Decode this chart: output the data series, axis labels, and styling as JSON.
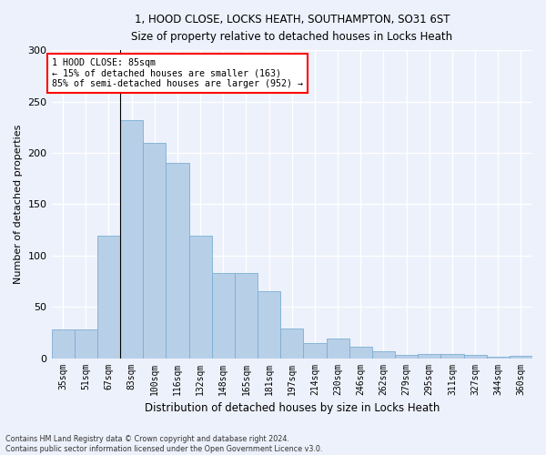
{
  "title_line1": "1, HOOD CLOSE, LOCKS HEATH, SOUTHAMPTON, SO31 6ST",
  "title_line2": "Size of property relative to detached houses in Locks Heath",
  "xlabel": "Distribution of detached houses by size in Locks Heath",
  "ylabel": "Number of detached properties",
  "categories": [
    "35sqm",
    "51sqm",
    "67sqm",
    "83sqm",
    "100sqm",
    "116sqm",
    "132sqm",
    "148sqm",
    "165sqm",
    "181sqm",
    "197sqm",
    "214sqm",
    "230sqm",
    "246sqm",
    "262sqm",
    "279sqm",
    "295sqm",
    "311sqm",
    "327sqm",
    "344sqm",
    "360sqm"
  ],
  "values": [
    28,
    28,
    119,
    232,
    210,
    190,
    119,
    83,
    83,
    65,
    29,
    15,
    19,
    11,
    7,
    3,
    4,
    4,
    3,
    1,
    2
  ],
  "bar_color": "#b8cfe8",
  "bar_edge_color": "#7aaed4",
  "annotation_line1": "1 HOOD CLOSE: 85sqm",
  "annotation_line2": "← 15% of detached houses are smaller (163)",
  "annotation_line3": "85% of semi-detached houses are larger (952) →",
  "vline_x": 2.5,
  "ylim": [
    0,
    300
  ],
  "yticks": [
    0,
    50,
    100,
    150,
    200,
    250,
    300
  ],
  "background_color": "#edf1fb",
  "grid_color": "#ffffff",
  "footer_line1": "Contains HM Land Registry data © Crown copyright and database right 2024.",
  "footer_line2": "Contains public sector information licensed under the Open Government Licence v3.0."
}
